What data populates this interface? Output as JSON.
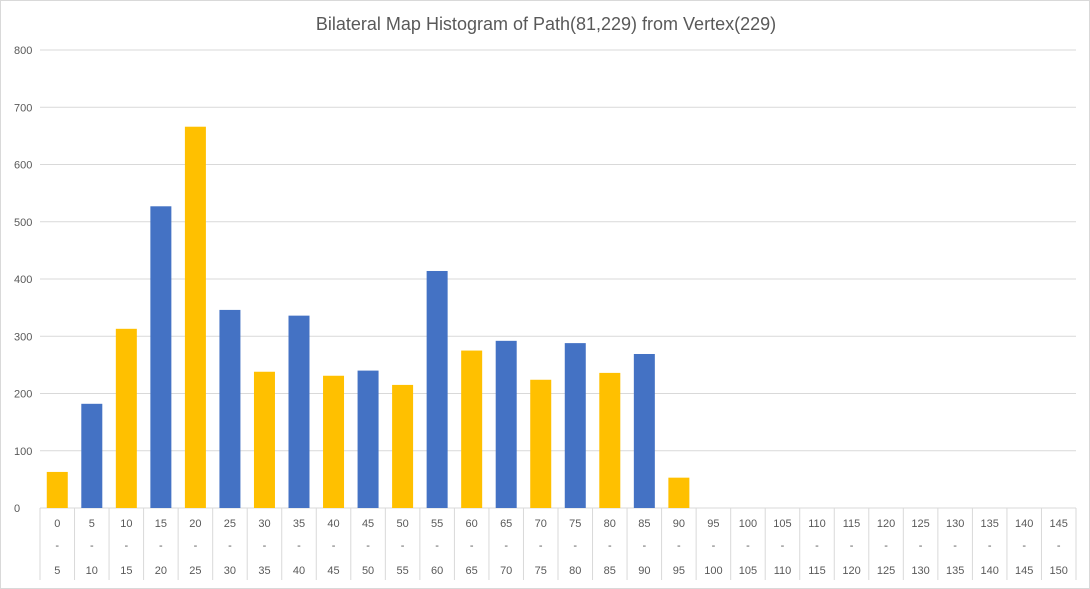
{
  "chart_data": {
    "type": "bar",
    "title": "Bilateral Map Histogram of Path(81,229) from Vertex(229)",
    "xlabel": "",
    "ylabel": "",
    "ylim": [
      0,
      800
    ],
    "yticks": [
      0,
      100,
      200,
      300,
      400,
      500,
      600,
      700,
      800
    ],
    "grid": true,
    "legend": "none",
    "categories": [
      {
        "from": "0",
        "sep": "-",
        "to": "5"
      },
      {
        "from": "5",
        "sep": "-",
        "to": "10"
      },
      {
        "from": "10",
        "sep": "-",
        "to": "15"
      },
      {
        "from": "15",
        "sep": "-",
        "to": "20"
      },
      {
        "from": "20",
        "sep": "-",
        "to": "25"
      },
      {
        "from": "25",
        "sep": "-",
        "to": "30"
      },
      {
        "from": "30",
        "sep": "-",
        "to": "35"
      },
      {
        "from": "35",
        "sep": "-",
        "to": "40"
      },
      {
        "from": "40",
        "sep": "-",
        "to": "45"
      },
      {
        "from": "45",
        "sep": "-",
        "to": "50"
      },
      {
        "from": "50",
        "sep": "-",
        "to": "55"
      },
      {
        "from": "55",
        "sep": "-",
        "to": "60"
      },
      {
        "from": "60",
        "sep": "-",
        "to": "65"
      },
      {
        "from": "65",
        "sep": "-",
        "to": "70"
      },
      {
        "from": "70",
        "sep": "-",
        "to": "75"
      },
      {
        "from": "75",
        "sep": "-",
        "to": "80"
      },
      {
        "from": "80",
        "sep": "-",
        "to": "85"
      },
      {
        "from": "85",
        "sep": "-",
        "to": "90"
      },
      {
        "from": "90",
        "sep": "-",
        "to": "95"
      },
      {
        "from": "95",
        "sep": "-",
        "to": "100"
      },
      {
        "from": "100",
        "sep": "-",
        "to": "105"
      },
      {
        "from": "105",
        "sep": "-",
        "to": "110"
      },
      {
        "from": "110",
        "sep": "-",
        "to": "115"
      },
      {
        "from": "115",
        "sep": "-",
        "to": "120"
      },
      {
        "from": "120",
        "sep": "-",
        "to": "125"
      },
      {
        "from": "125",
        "sep": "-",
        "to": "130"
      },
      {
        "from": "130",
        "sep": "-",
        "to": "135"
      },
      {
        "from": "135",
        "sep": "-",
        "to": "140"
      },
      {
        "from": "140",
        "sep": "-",
        "to": "145"
      },
      {
        "from": "145",
        "sep": "-",
        "to": "150"
      }
    ],
    "values": [
      63,
      182,
      313,
      527,
      666,
      346,
      238,
      336,
      231,
      240,
      215,
      414,
      275,
      292,
      224,
      288,
      236,
      269,
      53,
      0,
      0,
      0,
      0,
      0,
      0,
      0,
      0,
      0,
      0,
      0
    ],
    "bar_colors": [
      "#FFC000",
      "#4472C4",
      "#FFC000",
      "#4472C4",
      "#FFC000",
      "#4472C4",
      "#FFC000",
      "#4472C4",
      "#FFC000",
      "#4472C4",
      "#FFC000",
      "#4472C4",
      "#FFC000",
      "#4472C4",
      "#FFC000",
      "#4472C4",
      "#FFC000",
      "#4472C4",
      "#FFC000",
      "#4472C4",
      "#FFC000",
      "#4472C4",
      "#FFC000",
      "#4472C4",
      "#FFC000",
      "#4472C4",
      "#FFC000",
      "#4472C4",
      "#FFC000",
      "#4472C4"
    ]
  }
}
